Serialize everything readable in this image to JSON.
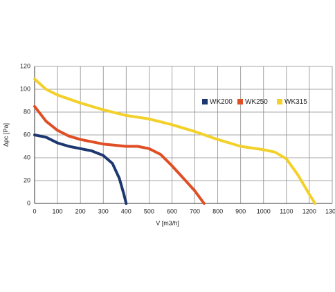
{
  "chart_data": {
    "type": "line",
    "xlabel": "V [m3/h]",
    "ylabel": "Δpc [Pa]",
    "xlim": [
      0,
      1300
    ],
    "ylim": [
      0,
      120
    ],
    "xticks": [
      0,
      100,
      200,
      300,
      400,
      500,
      600,
      700,
      800,
      900,
      1000,
      1100,
      1200,
      1300
    ],
    "yticks": [
      0,
      20,
      40,
      60,
      80,
      100,
      120
    ],
    "grid": true,
    "series": [
      {
        "name": "WK200",
        "color": "#1d3870",
        "x": [
          0,
          50,
          100,
          150,
          200,
          250,
          300,
          340,
          370,
          390,
          400
        ],
        "values": [
          60,
          58,
          53,
          50,
          48,
          46,
          42,
          35,
          22,
          8,
          0
        ]
      },
      {
        "name": "WK250",
        "color": "#e04e25",
        "x": [
          0,
          50,
          100,
          150,
          200,
          300,
          400,
          450,
          500,
          550,
          600,
          650,
          700,
          740
        ],
        "values": [
          85,
          72,
          64,
          59,
          56,
          52,
          50,
          50,
          48,
          43,
          33,
          22,
          11,
          0
        ]
      },
      {
        "name": "WK315",
        "color": "#f3d12a",
        "x": [
          0,
          50,
          100,
          200,
          300,
          400,
          500,
          600,
          700,
          800,
          900,
          1000,
          1050,
          1100,
          1150,
          1200,
          1225
        ],
        "values": [
          109,
          100,
          95,
          88,
          82,
          77,
          74,
          69,
          63,
          56,
          50,
          47,
          45,
          39,
          25,
          8,
          0
        ]
      }
    ]
  }
}
